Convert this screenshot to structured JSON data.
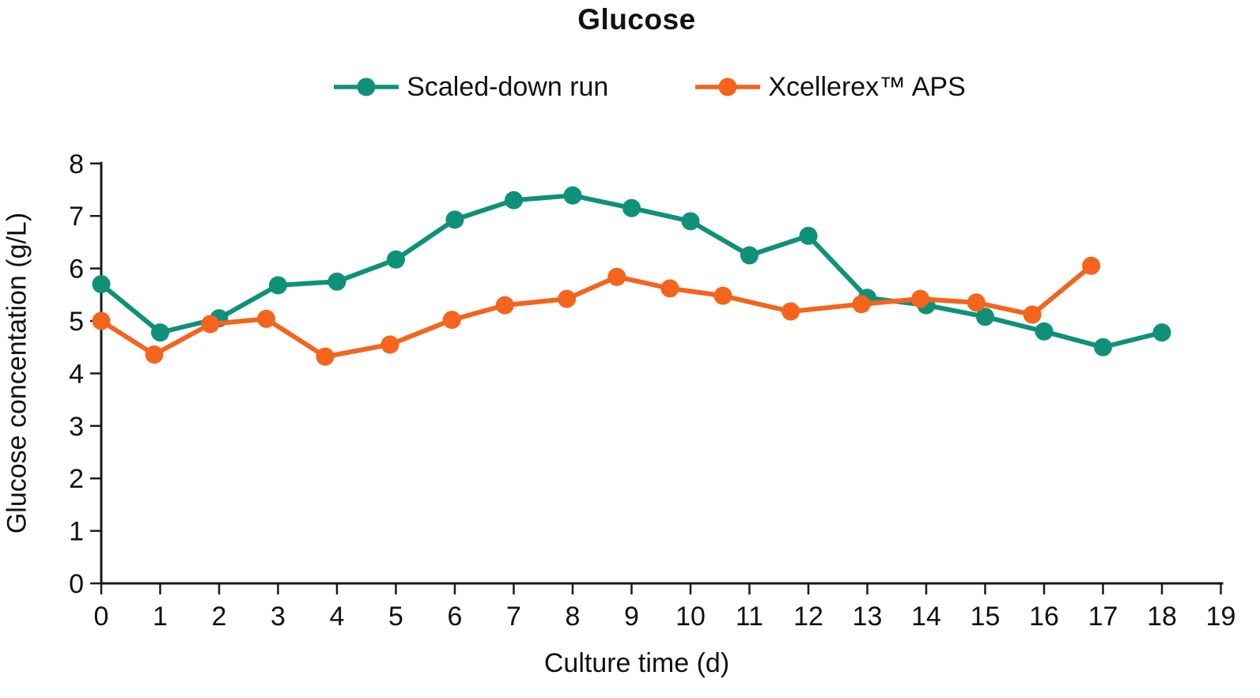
{
  "figure": {
    "title": "Glucose",
    "x_axis_label": "Culture time (d)",
    "y_axis_label": "Glucose concentation (g/L)"
  },
  "legend": {
    "position": "top",
    "items": [
      {
        "label": "Scaled-down run",
        "color": "#0f9179",
        "marker": "circle-on-line"
      },
      {
        "label": "Xcellerex™ APS",
        "color": "#f4641d",
        "marker": "circle-on-line"
      }
    ]
  },
  "chart_data": {
    "type": "line",
    "title": "Glucose",
    "xlabel": "Culture time (d)",
    "ylabel": "Glucose concentation (g/L)",
    "xlim": [
      0,
      19
    ],
    "ylim": [
      0,
      8
    ],
    "x_ticks": [
      0,
      1,
      2,
      3,
      4,
      5,
      6,
      7,
      8,
      9,
      10,
      11,
      12,
      13,
      14,
      15,
      16,
      17,
      18,
      19
    ],
    "y_ticks": [
      0,
      1,
      2,
      3,
      4,
      5,
      6,
      7,
      8
    ],
    "grid": false,
    "legend_position": "top-center",
    "axis_color": "#1a1a1a",
    "series": [
      {
        "name": "Scaled-down run",
        "color": "#0f9179",
        "x": [
          0,
          1,
          2,
          3,
          4,
          5,
          6,
          7,
          8,
          9,
          10,
          11,
          12,
          13,
          14,
          15,
          16,
          17,
          18
        ],
        "y": [
          5.7,
          4.78,
          5.05,
          5.68,
          5.75,
          6.17,
          6.93,
          7.3,
          7.39,
          7.15,
          6.9,
          6.25,
          6.62,
          5.44,
          5.3,
          5.08,
          4.8,
          4.5,
          4.78
        ]
      },
      {
        "name": "Xcellerex™ APS",
        "color": "#f4641d",
        "x": [
          0,
          0.9,
          1.85,
          2.8,
          3.8,
          4.9,
          5.95,
          6.85,
          7.9,
          8.75,
          9.65,
          10.55,
          11.7,
          12.9,
          13.9,
          14.85,
          15.8,
          16.8
        ],
        "y": [
          5.0,
          4.36,
          4.94,
          5.04,
          4.32,
          4.55,
          5.02,
          5.3,
          5.42,
          5.84,
          5.62,
          5.48,
          5.18,
          5.32,
          5.42,
          5.35,
          5.12,
          6.05
        ]
      }
    ]
  }
}
